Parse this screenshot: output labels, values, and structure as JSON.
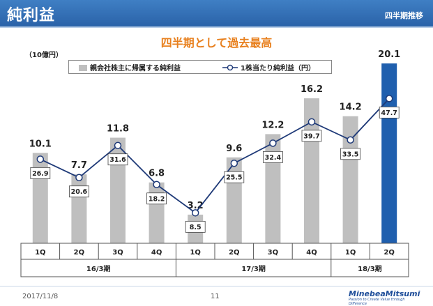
{
  "header": {
    "title": "純利益",
    "section": "四半期推移"
  },
  "headline": "四半期として過去最高",
  "footer": {
    "date": "2017/11/8",
    "page": "11",
    "logo": "MinebeaMitsumi",
    "tagline": "Passion to Create Value through Difference"
  },
  "colors": {
    "header_blue": "#2f6db5",
    "bar_gray": "#bfbfbf",
    "bar_highlight": "#1f5fae",
    "line_navy": "#1f3a78",
    "headline_orange": "#e8801e"
  },
  "chart_data": {
    "type": "bar+line",
    "unit_label": "（10億円）",
    "categories": [
      "1Q",
      "2Q",
      "3Q",
      "4Q",
      "1Q",
      "2Q",
      "3Q",
      "4Q",
      "1Q",
      "2Q"
    ],
    "groups": [
      {
        "label": "16/3期",
        "count": 4
      },
      {
        "label": "17/3期",
        "count": 4
      },
      {
        "label": "18/3期",
        "count": 2
      }
    ],
    "series": [
      {
        "name": "親会社株主に帰属する純利益",
        "type": "bar",
        "values": [
          10.1,
          7.7,
          11.8,
          6.8,
          3.2,
          9.6,
          12.2,
          16.2,
          14.2,
          20.1
        ],
        "highlight_index": 9
      },
      {
        "name": "1株当たり純利益（円）",
        "type": "line",
        "values": [
          26.9,
          20.6,
          31.6,
          18.2,
          8.5,
          25.5,
          32.4,
          39.7,
          33.5,
          47.7
        ]
      }
    ],
    "bar_ylim": [
      0,
      20.1
    ],
    "line_ylim": [
      -0.5,
      59.5
    ],
    "legend_position": "top"
  }
}
